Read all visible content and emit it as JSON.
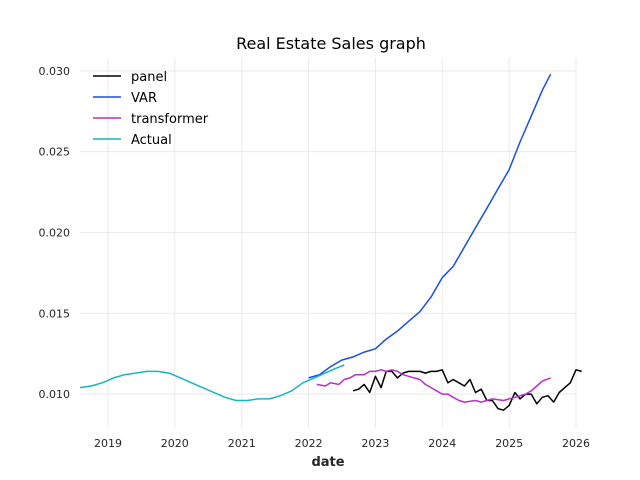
{
  "chart_data": {
    "type": "line",
    "title": "Real Estate Sales graph",
    "xlabel": "date",
    "ylabel": "",
    "xlim": [
      "2018-08-01",
      "2026-01-01"
    ],
    "ylim": [
      0.0079,
      0.0308
    ],
    "xticks": [
      "2019",
      "2020",
      "2021",
      "2022",
      "2023",
      "2024",
      "2025",
      "2026"
    ],
    "yticks": [
      0.01,
      0.015,
      0.02,
      0.025,
      0.03
    ],
    "ytick_labels": [
      "0.010",
      "0.015",
      "0.020",
      "0.025",
      "0.030"
    ],
    "grid": true,
    "legend_position": "top-left",
    "series": [
      {
        "name": "panel",
        "color": "#000000",
        "points": [
          [
            "2022-09-01",
            0.0102
          ],
          [
            "2022-10-01",
            0.0103
          ],
          [
            "2022-11-01",
            0.0106
          ],
          [
            "2022-12-01",
            0.0101
          ],
          [
            "2023-01-01",
            0.0111
          ],
          [
            "2023-02-01",
            0.0104
          ],
          [
            "2023-03-01",
            0.0114
          ],
          [
            "2023-04-01",
            0.0114
          ],
          [
            "2023-05-01",
            0.011
          ],
          [
            "2023-06-01",
            0.0113
          ],
          [
            "2023-07-01",
            0.0114
          ],
          [
            "2023-08-01",
            0.0114
          ],
          [
            "2023-09-01",
            0.0114
          ],
          [
            "2023-10-01",
            0.0113
          ],
          [
            "2023-11-01",
            0.0114
          ],
          [
            "2023-12-01",
            0.0114
          ],
          [
            "2024-01-01",
            0.0115
          ],
          [
            "2024-02-01",
            0.0107
          ],
          [
            "2024-03-01",
            0.0109
          ],
          [
            "2024-04-01",
            0.0107
          ],
          [
            "2024-05-01",
            0.0105
          ],
          [
            "2024-06-01",
            0.0109
          ],
          [
            "2024-07-01",
            0.0101
          ],
          [
            "2024-08-01",
            0.0103
          ],
          [
            "2024-09-01",
            0.0096
          ],
          [
            "2024-10-01",
            0.0096
          ],
          [
            "2024-11-01",
            0.0091
          ],
          [
            "2024-12-01",
            0.009
          ],
          [
            "2025-01-01",
            0.0093
          ],
          [
            "2025-02-01",
            0.0101
          ],
          [
            "2025-03-01",
            0.0097
          ],
          [
            "2025-04-01",
            0.01
          ],
          [
            "2025-05-01",
            0.01
          ],
          [
            "2025-06-01",
            0.0094
          ],
          [
            "2025-07-01",
            0.0098
          ],
          [
            "2025-08-01",
            0.0099
          ],
          [
            "2025-09-01",
            0.0095
          ],
          [
            "2025-10-01",
            0.0101
          ],
          [
            "2025-11-01",
            0.0104
          ],
          [
            "2025-12-01",
            0.0107
          ],
          [
            "2026-01-01",
            0.0115
          ],
          [
            "2026-02-01",
            0.0114
          ]
        ]
      },
      {
        "name": "VAR",
        "color": "#1a4fe0",
        "points": [
          [
            "2022-01-01",
            0.011
          ],
          [
            "2022-03-01",
            0.0112
          ],
          [
            "2022-05-01",
            0.0117
          ],
          [
            "2022-07-01",
            0.0121
          ],
          [
            "2022-09-01",
            0.0123
          ],
          [
            "2022-11-01",
            0.0126
          ],
          [
            "2023-01-01",
            0.0128
          ],
          [
            "2023-03-01",
            0.0134
          ],
          [
            "2023-05-01",
            0.0139
          ],
          [
            "2023-07-01",
            0.0145
          ],
          [
            "2023-09-01",
            0.0151
          ],
          [
            "2023-11-01",
            0.016
          ],
          [
            "2024-01-01",
            0.0172
          ],
          [
            "2024-03-01",
            0.0179
          ],
          [
            "2024-05-01",
            0.0191
          ],
          [
            "2024-07-01",
            0.0203
          ],
          [
            "2024-09-01",
            0.0215
          ],
          [
            "2024-11-01",
            0.0227
          ],
          [
            "2025-01-01",
            0.0239
          ],
          [
            "2025-03-01",
            0.0256
          ],
          [
            "2025-05-01",
            0.0272
          ],
          [
            "2025-07-01",
            0.0288
          ],
          [
            "2025-08-15",
            0.0298
          ]
        ]
      },
      {
        "name": "transformer",
        "color": "#b92fc5",
        "points": [
          [
            "2022-02-15",
            0.0106
          ],
          [
            "2022-04-01",
            0.0105
          ],
          [
            "2022-05-01",
            0.0107
          ],
          [
            "2022-06-15",
            0.0106
          ],
          [
            "2022-07-15",
            0.0109
          ],
          [
            "2022-08-15",
            0.011
          ],
          [
            "2022-09-15",
            0.0112
          ],
          [
            "2022-11-01",
            0.0112
          ],
          [
            "2022-12-01",
            0.0114
          ],
          [
            "2023-01-01",
            0.0114
          ],
          [
            "2023-02-01",
            0.0115
          ],
          [
            "2023-03-01",
            0.0114
          ],
          [
            "2023-04-01",
            0.0115
          ],
          [
            "2023-05-01",
            0.0114
          ],
          [
            "2023-06-01",
            0.0112
          ],
          [
            "2023-07-01",
            0.0111
          ],
          [
            "2023-09-01",
            0.0109
          ],
          [
            "2023-10-01",
            0.0106
          ],
          [
            "2023-11-01",
            0.0104
          ],
          [
            "2023-12-01",
            0.0102
          ],
          [
            "2024-01-01",
            0.01
          ],
          [
            "2024-02-01",
            0.01
          ],
          [
            "2024-03-01",
            0.0098
          ],
          [
            "2024-04-01",
            0.0096
          ],
          [
            "2024-05-01",
            0.0095
          ],
          [
            "2024-07-01",
            0.0096
          ],
          [
            "2024-08-01",
            0.0095
          ],
          [
            "2024-10-01",
            0.0097
          ],
          [
            "2024-12-01",
            0.0096
          ],
          [
            "2025-01-01",
            0.0097
          ],
          [
            "2025-02-01",
            0.0098
          ],
          [
            "2025-04-01",
            0.01
          ],
          [
            "2025-05-01",
            0.0102
          ],
          [
            "2025-06-01",
            0.0105
          ],
          [
            "2025-07-01",
            0.0108
          ],
          [
            "2025-08-15",
            0.011
          ]
        ]
      },
      {
        "name": "Actual",
        "color": "#17b3c0",
        "points": [
          [
            "2018-08-01",
            0.0104
          ],
          [
            "2018-10-01",
            0.0105
          ],
          [
            "2018-12-01",
            0.0107
          ],
          [
            "2019-02-01",
            0.011
          ],
          [
            "2019-04-01",
            0.0112
          ],
          [
            "2019-06-01",
            0.0113
          ],
          [
            "2019-08-01",
            0.0114
          ],
          [
            "2019-10-01",
            0.0114
          ],
          [
            "2019-12-01",
            0.0113
          ],
          [
            "2020-02-01",
            0.011
          ],
          [
            "2020-04-01",
            0.0107
          ],
          [
            "2020-06-01",
            0.0104
          ],
          [
            "2020-08-01",
            0.0101
          ],
          [
            "2020-10-01",
            0.0098
          ],
          [
            "2020-12-01",
            0.0096
          ],
          [
            "2021-02-01",
            0.0096
          ],
          [
            "2021-04-01",
            0.0097
          ],
          [
            "2021-06-01",
            0.0097
          ],
          [
            "2021-08-01",
            0.0099
          ],
          [
            "2021-10-01",
            0.0102
          ],
          [
            "2021-12-01",
            0.0107
          ],
          [
            "2022-02-01",
            0.011
          ],
          [
            "2022-04-01",
            0.0113
          ],
          [
            "2022-06-01",
            0.0116
          ],
          [
            "2022-07-15",
            0.0118
          ]
        ]
      }
    ]
  }
}
